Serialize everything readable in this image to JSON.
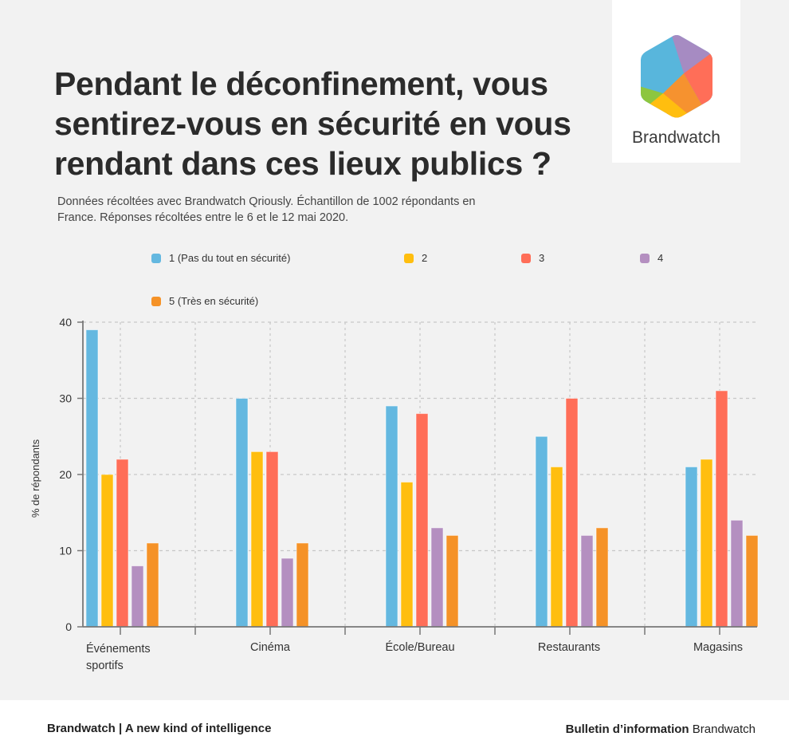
{
  "header": {
    "title": "Pendant le déconfinement, vous sentirez-vous en sécurité en vous rendant dans ces lieux publics ?",
    "subtitle": "Données récoltées avec Brandwatch Qriously. Échantillon de 1002 répondants en France. Réponses récoltées entre le 6 et le 12 mai 2020."
  },
  "logo": {
    "icon": "brandwatch-hexagon-logo-icon",
    "text": "Brandwatch"
  },
  "chart_data": {
    "type": "bar",
    "title": "Pendant le déconfinement, vous sentirez-vous en sécurité en vous rendant dans ces lieux publics ?",
    "xlabel": "",
    "ylabel": "% de répondants",
    "ylim": [
      0,
      40
    ],
    "yticks": [
      0,
      10,
      20,
      30,
      40
    ],
    "grid": true,
    "legend_position": "top",
    "categories": [
      "Événements sportifs",
      "Cinéma",
      "École/Bureau",
      "Restaurants",
      "Magasins"
    ],
    "category_label_lines": [
      [
        "Événements",
        "sportifs"
      ],
      [
        "Cinéma"
      ],
      [
        "École/Bureau"
      ],
      [
        "Restaurants"
      ],
      [
        "Magasins"
      ]
    ],
    "series": [
      {
        "name": "1 (Pas du tout en sécurité)",
        "color": "#64b8e0",
        "values": [
          39,
          30,
          29,
          25,
          21
        ]
      },
      {
        "name": "2",
        "color": "#ffbe0f",
        "values": [
          20,
          23,
          19,
          21,
          22
        ]
      },
      {
        "name": "3",
        "color": "#ff6e58",
        "values": [
          22,
          23,
          28,
          30,
          31
        ]
      },
      {
        "name": "4",
        "color": "#b48fc0",
        "values": [
          8,
          9,
          13,
          12,
          14
        ]
      },
      {
        "name": "5 (Très en sécurité)",
        "color": "#f59227",
        "values": [
          11,
          11,
          12,
          13,
          12
        ]
      }
    ]
  },
  "footer": {
    "left": "Brandwatch | A new kind of intelligence",
    "right_bold": "Bulletin d’information",
    "right_regular": "Brandwatch"
  }
}
